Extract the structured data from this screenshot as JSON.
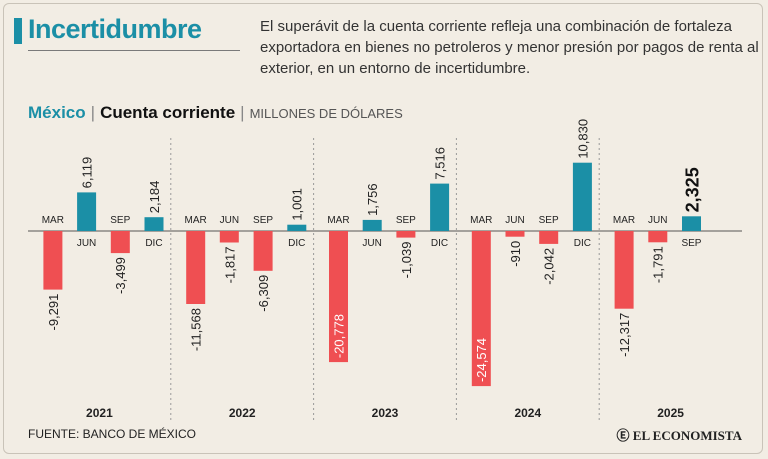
{
  "header": {
    "title": "Incertidumbre",
    "description": "El superávit de la cuenta corriente refleja una combinación de fortaleza exportadora en bienes no petroleros y menor presión por pagos de renta al exterior,  en un entorno de incertidumbre."
  },
  "subtitle": {
    "country": "México",
    "separator": "|",
    "metric": "Cuenta corriente",
    "units": "MILLONES DE DÓLARES"
  },
  "footer": {
    "source": "FUENTE: BANCO DE MÉXICO",
    "brand": "EL ECONOMISTA",
    "brand_icon": "circle-e-logo-icon"
  },
  "colors": {
    "accent": "#1b8fa6",
    "positive": "#1b8fa6",
    "negative": "#ef4f52",
    "background": "#f2ede4"
  },
  "chart_data": {
    "type": "bar",
    "title": "México | Cuenta corriente",
    "ylabel": "MILLONES DE DÓLARES",
    "ylim": [
      -26000,
      12000
    ],
    "years": [
      {
        "year": "2021",
        "quarters": [
          {
            "q": "MAR",
            "label": "-9,291",
            "value": -9291
          },
          {
            "q": "JUN",
            "label": "6,119",
            "value": 6119
          },
          {
            "q": "SEP",
            "label": "-3,499",
            "value": -3499
          },
          {
            "q": "DIC",
            "label": "2,184",
            "value": 2184
          }
        ]
      },
      {
        "year": "2022",
        "quarters": [
          {
            "q": "MAR",
            "label": "-11,568",
            "value": -11568
          },
          {
            "q": "JUN",
            "label": "-1,817",
            "value": -1817
          },
          {
            "q": "SEP",
            "label": "-6,309",
            "value": -6309
          },
          {
            "q": "DIC",
            "label": "1,001",
            "value": 1001
          }
        ]
      },
      {
        "year": "2023",
        "quarters": [
          {
            "q": "MAR",
            "label": "-20,778",
            "value": -20778
          },
          {
            "q": "JUN",
            "label": "1,756",
            "value": 1756
          },
          {
            "q": "SEP",
            "label": "-1,039",
            "value": -1039
          },
          {
            "q": "DIC",
            "label": "7,516",
            "value": 7516
          }
        ]
      },
      {
        "year": "2024",
        "quarters": [
          {
            "q": "MAR",
            "label": "-24,574",
            "value": -24574
          },
          {
            "q": "JUN",
            "label": "-910",
            "value": -910
          },
          {
            "q": "SEP",
            "label": "-2,042",
            "value": -2042
          },
          {
            "q": "DIC",
            "label": "10,830",
            "value": 10830
          }
        ]
      },
      {
        "year": "2025",
        "quarters": [
          {
            "q": "MAR",
            "label": "-12,317",
            "value": -12317
          },
          {
            "q": "JUN",
            "label": "-1,791",
            "value": -1791
          },
          {
            "q": "SEP",
            "label": "2,325",
            "value": 2325,
            "highlight": true
          }
        ]
      }
    ]
  }
}
